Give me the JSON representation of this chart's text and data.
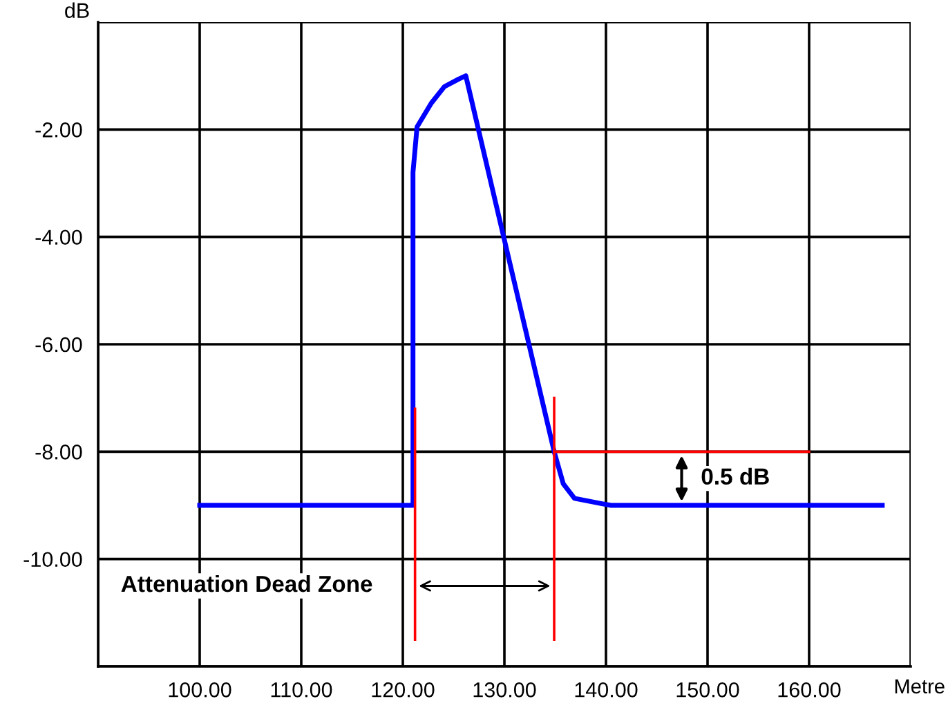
{
  "chart_data": {
    "type": "line",
    "xlabel": "Metre",
    "ylabel": "dB",
    "xlim": [
      90,
      170
    ],
    "ylim": [
      -12,
      0
    ],
    "xticks": [
      {
        "value": 90,
        "label": null
      },
      {
        "value": 100,
        "label": "100.00"
      },
      {
        "value": 110,
        "label": "110.00"
      },
      {
        "value": 120,
        "label": "120.00"
      },
      {
        "value": 130,
        "label": "130.00"
      },
      {
        "value": 140,
        "label": "140.00"
      },
      {
        "value": 150,
        "label": "150.00"
      },
      {
        "value": 160,
        "label": "160.00"
      },
      {
        "value": 170,
        "label": null
      }
    ],
    "yticks": [
      {
        "value": 0,
        "label": null
      },
      {
        "value": -2,
        "label": "-2.00"
      },
      {
        "value": -4,
        "label": "-4.00"
      },
      {
        "value": -6,
        "label": "-6.00"
      },
      {
        "value": -8,
        "label": "-8.00"
      },
      {
        "value": -10,
        "label": "-10.00"
      },
      {
        "value": -12,
        "label": null
      }
    ],
    "grid": true,
    "marker": "none",
    "line_style": "solid",
    "series": [
      {
        "color": "#0000ff",
        "x": [
          100,
          121.0,
          121.0,
          121.4,
          122.8,
          124.1,
          125.5,
          126.2,
          134.9,
          135.8,
          136.9,
          139.6,
          140.5,
          167.2
        ],
        "values": [
          -9.0,
          -9.0,
          -2.8,
          -1.95,
          -1.51,
          -1.2,
          -1.06,
          -1.0,
          -8.0,
          -8.6,
          -8.87,
          -8.97,
          -9.0,
          -9.0
        ]
      },
      {
        "color": "#ff0000",
        "x": [
          121.2,
          121.2
        ],
        "values": [
          -7.2,
          -11.5
        ]
      },
      {
        "color": "#ff0000",
        "x": [
          134.9,
          134.9
        ],
        "values": [
          -7.0,
          -11.5
        ]
      },
      {
        "color": "#ff0000",
        "x": [
          134.9,
          160
        ],
        "values": [
          -8.0,
          -8.0
        ]
      }
    ],
    "annotations": [
      {
        "text": "Attenuation Dead Zone",
        "x": 121.2,
        "y": -10.5
      },
      "0.5 dB"
    ]
  }
}
